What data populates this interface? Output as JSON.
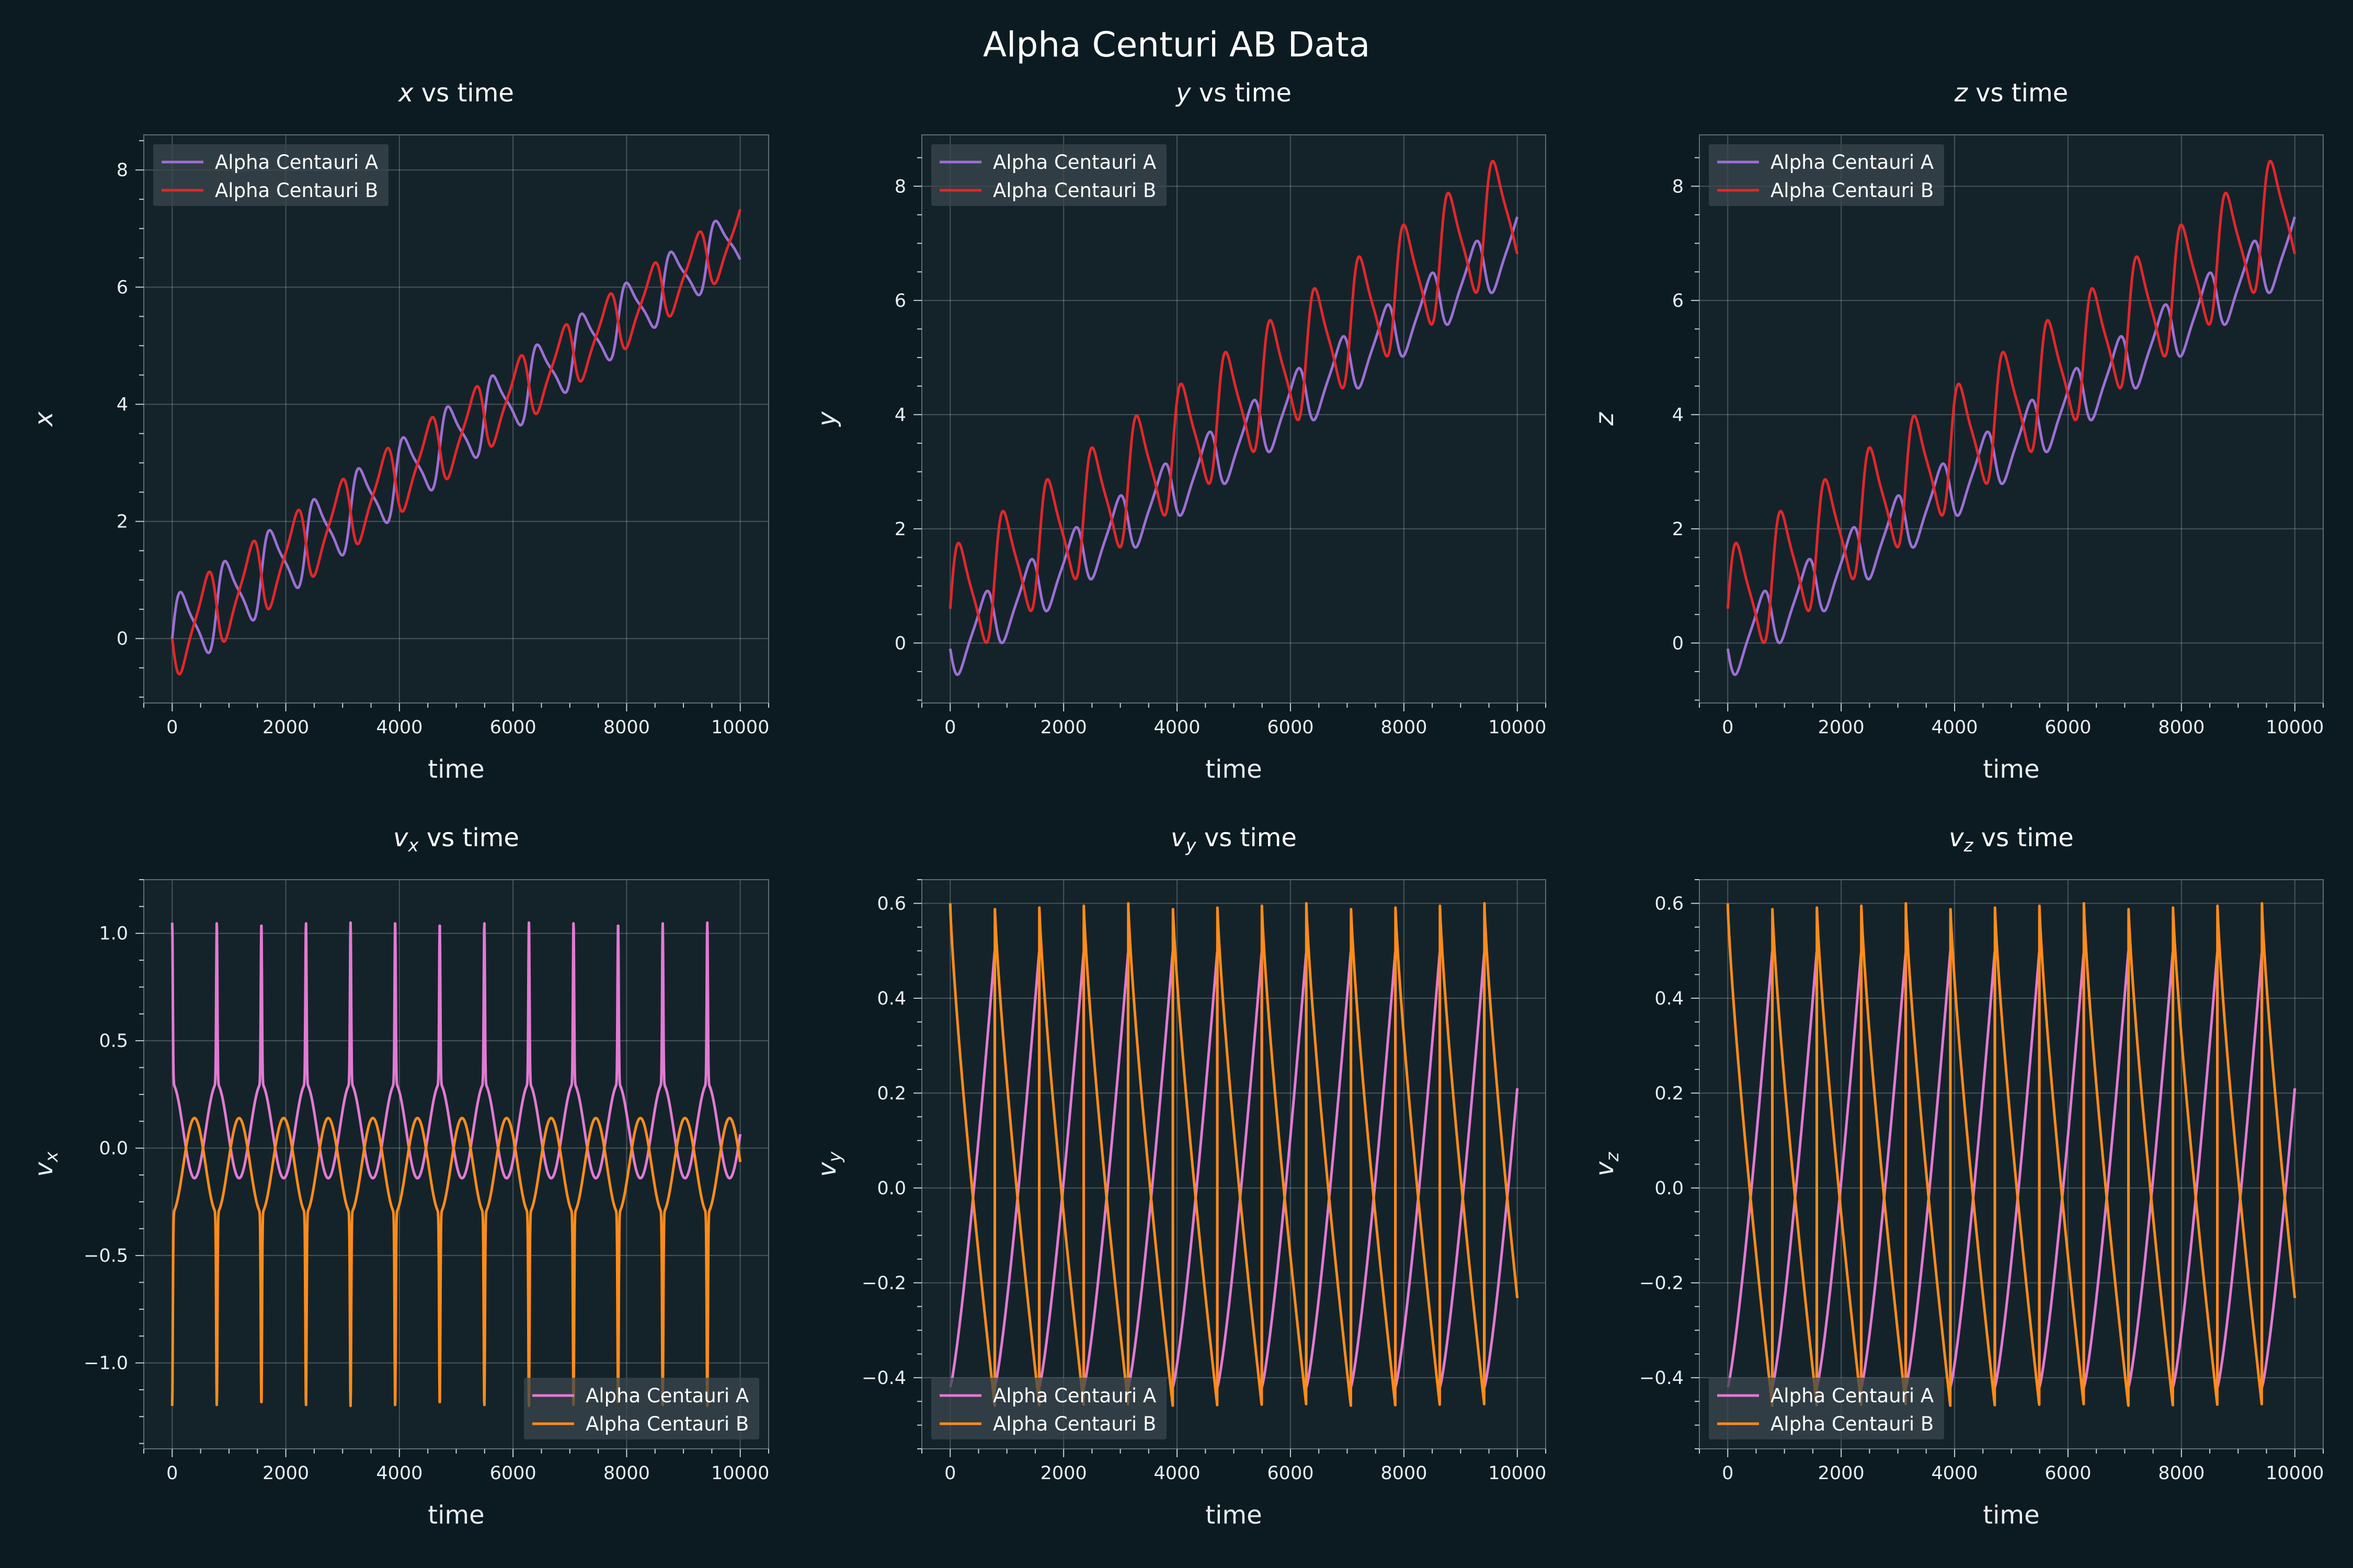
{
  "figure": {
    "suptitle": "Alpha Centuri AB Data",
    "background": "#0c1b22",
    "axes_face": "#14232a"
  },
  "legend_labels": [
    "Alpha Centauri A",
    "Alpha Centauri B"
  ],
  "chart_data": [
    {
      "type": "line",
      "title_var": "x",
      "title_sub": "",
      "title_rest": " vs time",
      "xlabel": "time",
      "ylabel_var": "x",
      "ylabel_sub": "",
      "xlim": [
        -500,
        10500
      ],
      "ylim": [
        -1.1,
        8.6
      ],
      "xticks": [
        0,
        2000,
        4000,
        6000,
        8000,
        10000
      ],
      "yticks": [
        0,
        2,
        4,
        6,
        8
      ],
      "grid": true,
      "legend": "upper-left",
      "colors": [
        "#9c6fd3",
        "#e2272a"
      ],
      "series": [
        {
          "name": "Alpha Centauri A",
          "model": "drift_osc",
          "params": {
            "a": 0.7,
            "b": 0.69,
            "c": 0.0,
            "d": 1.4
          }
        },
        {
          "name": "Alpha Centauri B",
          "model": "drift_osc",
          "params": {
            "a": 0.7,
            "b": 0.69,
            "c": 0.0,
            "d": -1.4
          }
        }
      ]
    },
    {
      "type": "line",
      "title_var": "y",
      "title_sub": "",
      "title_rest": " vs time",
      "xlabel": "time",
      "ylabel_var": "y",
      "ylabel_sub": "",
      "xlim": [
        -500,
        10500
      ],
      "ylim": [
        -1.05,
        8.9
      ],
      "xticks": [
        0,
        2000,
        4000,
        6000,
        8000,
        10000
      ],
      "yticks": [
        0,
        2,
        4,
        6,
        8
      ],
      "grid": true,
      "legend": "upper-left",
      "colors": [
        "#9c6fd3",
        "#e2272a"
      ],
      "series": [
        {
          "name": "Alpha Centauri A",
          "model": "drift_sin",
          "params": {
            "a": 0.26,
            "b": 0.71,
            "c": 0.0,
            "d": -1.7
          }
        },
        {
          "name": "Alpha Centauri B",
          "model": "drift_sin",
          "params": {
            "a": 0.26,
            "b": 0.71,
            "c": 0.0,
            "d": 1.7
          }
        }
      ]
    },
    {
      "type": "line",
      "title_var": "z",
      "title_sub": "",
      "title_rest": " vs time",
      "xlabel": "time",
      "ylabel_var": "z",
      "ylabel_sub": "",
      "xlim": [
        -500,
        10500
      ],
      "ylim": [
        -1.05,
        8.9
      ],
      "xticks": [
        0,
        2000,
        4000,
        6000,
        8000,
        10000
      ],
      "yticks": [
        0,
        2,
        4,
        6,
        8
      ],
      "grid": true,
      "legend": "upper-left",
      "colors": [
        "#9c6fd3",
        "#e2272a"
      ],
      "series": [
        {
          "name": "Alpha Centauri A",
          "model": "drift_sin",
          "params": {
            "a": 0.26,
            "b": 0.71,
            "c": 0.0,
            "d": -1.7
          }
        },
        {
          "name": "Alpha Centauri B",
          "model": "drift_sin",
          "params": {
            "a": 0.26,
            "b": 0.71,
            "c": 0.0,
            "d": 1.7
          }
        }
      ]
    },
    {
      "type": "line",
      "title_var": "v",
      "title_sub": "x",
      "title_rest": " vs time",
      "xlabel": "time",
      "ylabel_var": "v",
      "ylabel_sub": "x",
      "xlim": [
        -500,
        10500
      ],
      "ylim": [
        -1.4,
        1.25
      ],
      "xticks": [
        0,
        2000,
        4000,
        6000,
        8000,
        10000
      ],
      "yticks": [
        -1.0,
        -0.5,
        0.0,
        0.5,
        1.0
      ],
      "ytick_labels": [
        "−1.0",
        "−0.5",
        "0.0",
        "0.5",
        "1.0"
      ],
      "grid": true,
      "legend": "lower-right",
      "colors": [
        "#e27ad3",
        "#ff8c1a"
      ],
      "series": [
        {
          "name": "Alpha Centauri A",
          "model": "vx",
          "params": {
            "base": 0.08,
            "amp": 0.22,
            "spike": 1.05,
            "end": 0.28
          }
        },
        {
          "name": "Alpha Centauri B",
          "model": "vx",
          "params": {
            "base": -0.08,
            "amp": -0.22,
            "spike": -1.2,
            "end": -0.22
          }
        }
      ]
    },
    {
      "type": "line",
      "title_var": "v",
      "title_sub": "y",
      "title_rest": " vs time",
      "xlabel": "time",
      "ylabel_var": "v",
      "ylabel_sub": "y",
      "xlim": [
        -500,
        10500
      ],
      "ylim": [
        -0.55,
        0.65
      ],
      "xticks": [
        0,
        2000,
        4000,
        6000,
        8000,
        10000
      ],
      "yticks": [
        -0.4,
        -0.2,
        0.0,
        0.2,
        0.4,
        0.6
      ],
      "ytick_labels": [
        "−0.4",
        "−0.2",
        "0.0",
        "0.2",
        "0.4",
        "0.6"
      ],
      "grid": true,
      "legend": "lower-left",
      "colors": [
        "#e27ad3",
        "#ff8c1a"
      ],
      "series": [
        {
          "name": "Alpha Centauri A",
          "model": "saw_up",
          "params": {
            "lo": -0.42,
            "hi": 0.5,
            "end": 0.47
          }
        },
        {
          "name": "Alpha Centauri B",
          "model": "saw_down",
          "params": {
            "lo": -0.46,
            "hi": 0.6,
            "end": -0.46
          }
        }
      ]
    },
    {
      "type": "line",
      "title_var": "v",
      "title_sub": "z",
      "title_rest": " vs time",
      "xlabel": "time",
      "ylabel_var": "v",
      "ylabel_sub": "z",
      "xlim": [
        -500,
        10500
      ],
      "ylim": [
        -0.55,
        0.65
      ],
      "xticks": [
        0,
        2000,
        4000,
        6000,
        8000,
        10000
      ],
      "yticks": [
        -0.4,
        -0.2,
        0.0,
        0.2,
        0.4,
        0.6
      ],
      "ytick_labels": [
        "−0.4",
        "−0.2",
        "0.0",
        "0.2",
        "0.4",
        "0.6"
      ],
      "grid": true,
      "legend": "lower-left",
      "colors": [
        "#e27ad3",
        "#ff8c1a"
      ],
      "series": [
        {
          "name": "Alpha Centauri A",
          "model": "saw_up",
          "params": {
            "lo": -0.42,
            "hi": 0.5,
            "end": 0.47
          }
        },
        {
          "name": "Alpha Centauri B",
          "model": "saw_down",
          "params": {
            "lo": -0.46,
            "hi": 0.6,
            "end": -0.46
          }
        }
      ]
    }
  ]
}
